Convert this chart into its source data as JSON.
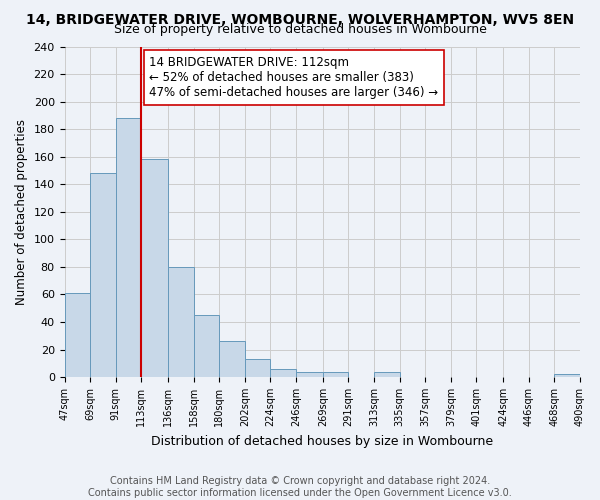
{
  "title": "14, BRIDGEWATER DRIVE, WOMBOURNE, WOLVERHAMPTON, WV5 8EN",
  "subtitle": "Size of property relative to detached houses in Wombourne",
  "xlabel": "Distribution of detached houses by size in Wombourne",
  "ylabel": "Number of detached properties",
  "bin_edges": [
    47,
    69,
    91,
    113,
    136,
    158,
    180,
    202,
    224,
    246,
    269,
    291,
    313,
    335,
    357,
    379,
    401,
    424,
    446,
    468,
    490
  ],
  "bin_labels": [
    "47sqm",
    "69sqm",
    "91sqm",
    "113sqm",
    "136sqm",
    "158sqm",
    "180sqm",
    "202sqm",
    "224sqm",
    "246sqm",
    "269sqm",
    "291sqm",
    "313sqm",
    "335sqm",
    "357sqm",
    "379sqm",
    "401sqm",
    "424sqm",
    "446sqm",
    "468sqm",
    "490sqm"
  ],
  "counts": [
    61,
    148,
    188,
    158,
    80,
    45,
    26,
    13,
    6,
    4,
    4,
    0,
    4,
    0,
    0,
    0,
    0,
    0,
    0,
    2
  ],
  "bar_color": "#c8d8e8",
  "bar_edge_color": "#6699bb",
  "vline_x": 113,
  "vline_color": "#cc0000",
  "annotation_text": "14 BRIDGEWATER DRIVE: 112sqm\n← 52% of detached houses are smaller (383)\n47% of semi-detached houses are larger (346) →",
  "annotation_box_color": "#ffffff",
  "annotation_box_edge": "#cc0000",
  "ylim": [
    0,
    240
  ],
  "yticks": [
    0,
    20,
    40,
    60,
    80,
    100,
    120,
    140,
    160,
    180,
    200,
    220,
    240
  ],
  "grid_color": "#cccccc",
  "background_color": "#eef2f8",
  "footer_text": "Contains HM Land Registry data © Crown copyright and database right 2024.\nContains public sector information licensed under the Open Government Licence v3.0.",
  "title_fontsize": 10,
  "subtitle_fontsize": 9,
  "xlabel_fontsize": 9,
  "ylabel_fontsize": 8.5,
  "annotation_fontsize": 8.5,
  "footer_fontsize": 7
}
